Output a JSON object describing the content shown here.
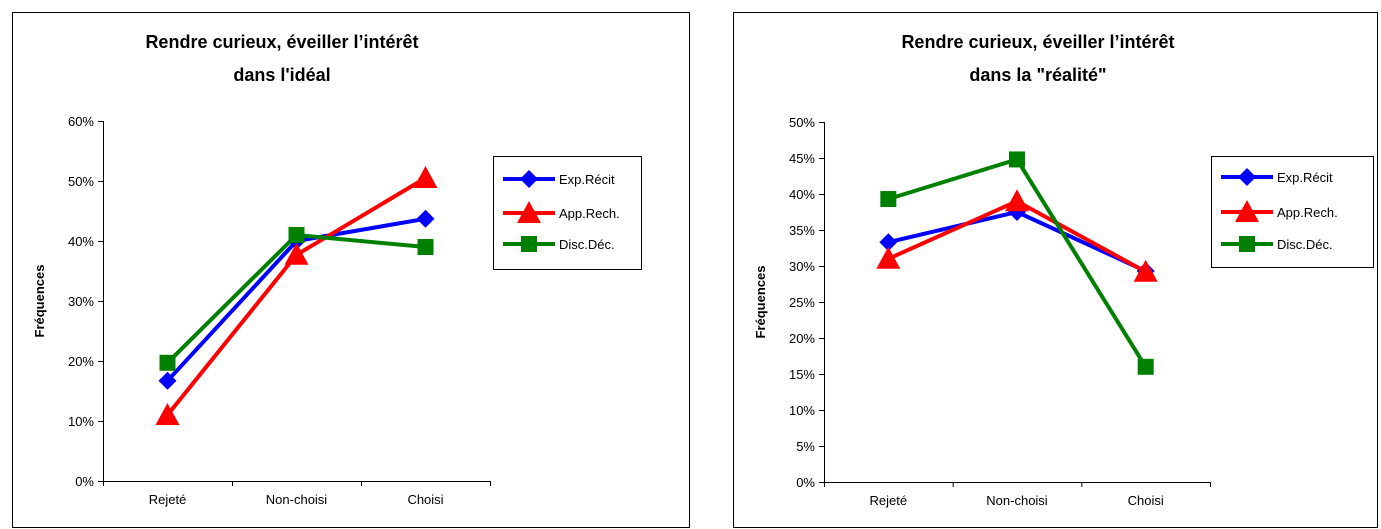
{
  "chart_data": [
    {
      "type": "line",
      "title": "Rendre curieux, éveiller l’intérêt",
      "subtitle": "dans l'idéal",
      "xlabel": "",
      "ylabel": "Fréquences",
      "categories": [
        "Rejeté",
        "Non-choisi",
        "Choisi"
      ],
      "ylim": [
        0,
        0.6
      ],
      "yticks": [
        "0%",
        "10%",
        "20%",
        "30%",
        "40%",
        "50%",
        "60%"
      ],
      "grid": false,
      "legend": "right",
      "series": [
        {
          "name": "Exp.Récit",
          "color": "#0000FF",
          "marker": "diamond",
          "values": [
            0.167,
            0.4,
            0.437
          ]
        },
        {
          "name": "App.Rech.",
          "color": "#FF0000",
          "marker": "triangle",
          "values": [
            0.11,
            0.377,
            0.505
          ]
        },
        {
          "name": "Disc.Déc.",
          "color": "#008000",
          "marker": "square",
          "values": [
            0.197,
            0.41,
            0.39
          ]
        }
      ]
    },
    {
      "type": "line",
      "title": "Rendre curieux, éveiller l’intérêt",
      "subtitle": "dans la \"réalité\"",
      "xlabel": "",
      "ylabel": "Fréquences",
      "categories": [
        "Rejeté",
        "Non-choisi",
        "Choisi"
      ],
      "ylim": [
        0,
        0.5
      ],
      "yticks": [
        "0%",
        "5%",
        "10%",
        "15%",
        "20%",
        "25%",
        "30%",
        "35%",
        "40%",
        "45%",
        "50%"
      ],
      "grid": false,
      "legend": "right",
      "series": [
        {
          "name": "Exp.Récit",
          "color": "#0000FF",
          "marker": "diamond",
          "values": [
            0.333,
            0.375,
            0.293
          ]
        },
        {
          "name": "App.Rech.",
          "color": "#FF0000",
          "marker": "triangle",
          "values": [
            0.31,
            0.39,
            0.292
          ]
        },
        {
          "name": "Disc.Déc.",
          "color": "#008000",
          "marker": "square",
          "values": [
            0.393,
            0.448,
            0.16
          ]
        }
      ]
    }
  ]
}
